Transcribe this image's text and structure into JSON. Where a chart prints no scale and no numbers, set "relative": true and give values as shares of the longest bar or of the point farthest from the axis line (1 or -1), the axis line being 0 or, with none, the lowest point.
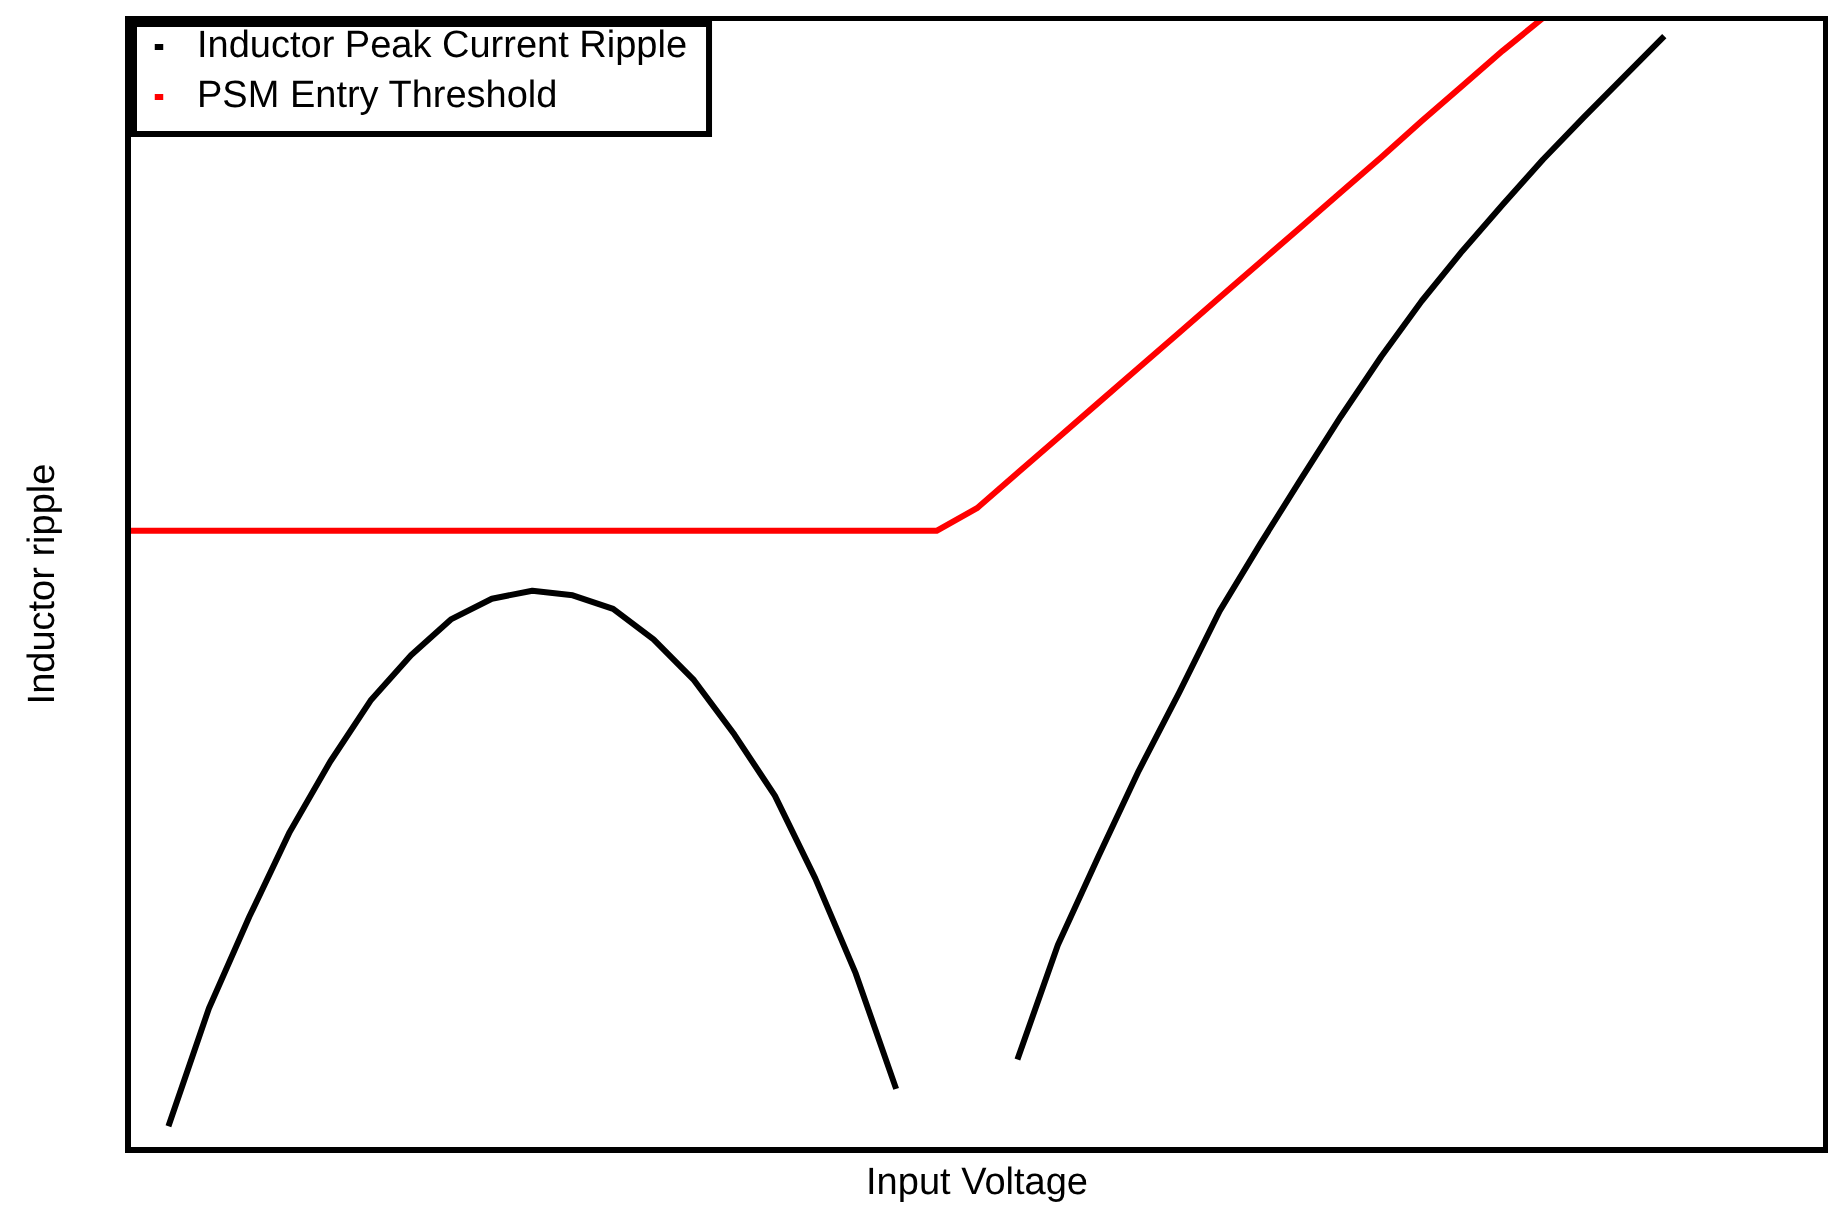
{
  "chart_data": {
    "type": "line",
    "xlabel": "Input Voltage",
    "ylabel": "Inductor ripple",
    "relative": true,
    "legend": "top left",
    "grid": false,
    "marker": "none",
    "line_style": "solid",
    "categories": [
      null,
      null,
      null,
      null,
      null,
      null,
      null,
      null,
      null,
      null,
      null,
      null,
      null,
      null,
      null,
      null,
      null,
      null,
      null,
      null,
      null,
      null,
      null,
      null,
      null,
      null,
      null,
      null,
      null,
      null,
      null,
      null,
      null,
      null,
      null,
      null,
      null,
      null,
      null,
      null,
      null,
      null,
      null
    ],
    "series": [
      {
        "name": "Inductor Peak Current Ripple",
        "color": "#000000",
        "values": [
          null,
          0.021,
          0.125,
          0.206,
          0.281,
          0.343,
          0.397,
          0.437,
          0.469,
          0.487,
          0.494,
          0.49,
          0.478,
          0.451,
          0.415,
          0.367,
          0.313,
          0.24,
          0.156,
          0.054,
          null,
          null,
          0.08,
          0.181,
          0.259,
          0.335,
          0.404,
          0.476,
          0.535,
          0.592,
          0.648,
          0.701,
          0.75,
          0.794,
          0.835,
          0.875,
          0.912,
          0.948,
          0.984,
          null,
          null,
          null,
          null
        ]
      },
      {
        "name": "PSM Entry Threshold",
        "color": "#ff0000",
        "values": [
          0.547,
          0.547,
          0.547,
          0.547,
          0.547,
          0.547,
          0.547,
          0.547,
          0.547,
          0.547,
          0.547,
          0.547,
          0.547,
          0.547,
          0.547,
          0.547,
          0.547,
          0.547,
          0.547,
          0.547,
          0.547,
          0.567,
          0.598,
          0.629,
          0.66,
          0.691,
          0.722,
          0.753,
          0.784,
          0.815,
          0.846,
          0.877,
          0.909,
          0.94,
          0.971,
          1.0,
          null,
          null,
          null,
          null,
          null,
          null,
          null
        ]
      }
    ]
  }
}
